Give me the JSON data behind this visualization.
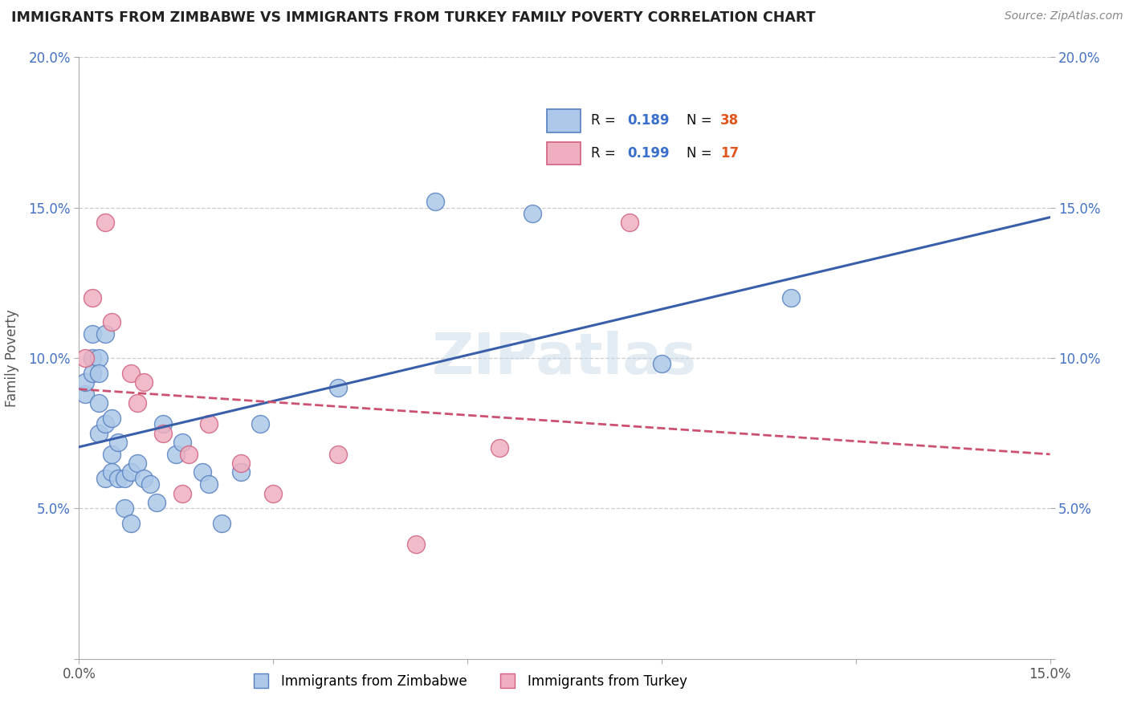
{
  "title": "IMMIGRANTS FROM ZIMBABWE VS IMMIGRANTS FROM TURKEY FAMILY POVERTY CORRELATION CHART",
  "source": "Source: ZipAtlas.com",
  "ylabel_label": "Family Poverty",
  "xlim": [
    0.0,
    0.15
  ],
  "ylim": [
    0.0,
    0.2
  ],
  "zim_r": "0.189",
  "zim_n": "38",
  "tur_r": "0.199",
  "tur_n": "17",
  "zim_fill_color": "#adc8e8",
  "tur_fill_color": "#f0afc0",
  "zim_edge_color": "#5580c0",
  "tur_edge_color": "#d06080",
  "zim_line_color": "#3a5faa",
  "tur_line_color": "#cc5070",
  "title_color": "#222222",
  "source_color": "#888888",
  "label_color": "#555555",
  "tick_color_y": "#4472c4",
  "tick_color_x": "#555555",
  "bg_color": "#ffffff",
  "grid_color": "#cccccc",
  "watermark_text": "ZIPatlas",
  "legend_box_color": "#cccccc",
  "zim_x": [
    0.001,
    0.001,
    0.002,
    0.002,
    0.002,
    0.003,
    0.003,
    0.003,
    0.003,
    0.004,
    0.004,
    0.004,
    0.005,
    0.005,
    0.005,
    0.006,
    0.006,
    0.007,
    0.007,
    0.008,
    0.008,
    0.009,
    0.01,
    0.011,
    0.012,
    0.013,
    0.015,
    0.016,
    0.019,
    0.02,
    0.022,
    0.025,
    0.028,
    0.04,
    0.055,
    0.07,
    0.09,
    0.11
  ],
  "zim_y": [
    0.088,
    0.092,
    0.1,
    0.108,
    0.095,
    0.1,
    0.095,
    0.085,
    0.075,
    0.108,
    0.078,
    0.06,
    0.08,
    0.068,
    0.062,
    0.06,
    0.072,
    0.06,
    0.05,
    0.062,
    0.045,
    0.065,
    0.06,
    0.058,
    0.052,
    0.078,
    0.068,
    0.072,
    0.062,
    0.058,
    0.045,
    0.062,
    0.078,
    0.09,
    0.152,
    0.148,
    0.098,
    0.12
  ],
  "tur_x": [
    0.001,
    0.002,
    0.004,
    0.005,
    0.008,
    0.009,
    0.01,
    0.013,
    0.016,
    0.017,
    0.02,
    0.025,
    0.03,
    0.04,
    0.052,
    0.065,
    0.085
  ],
  "tur_y": [
    0.1,
    0.12,
    0.145,
    0.112,
    0.095,
    0.085,
    0.092,
    0.075,
    0.055,
    0.068,
    0.078,
    0.065,
    0.055,
    0.068,
    0.038,
    0.07,
    0.145
  ]
}
